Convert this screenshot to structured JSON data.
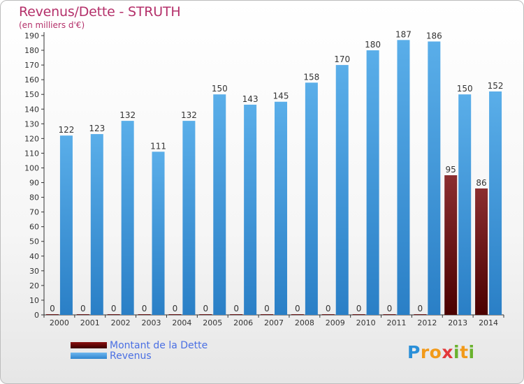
{
  "chart_data": {
    "type": "bar",
    "title": "Revenus/Dette - STRUTH",
    "subtitle": "(en milliers d'€)",
    "categories": [
      "2000",
      "2001",
      "2002",
      "2003",
      "2004",
      "2005",
      "2006",
      "2007",
      "2008",
      "2009",
      "2010",
      "2011",
      "2012",
      "2013",
      "2014"
    ],
    "series": [
      {
        "name": "Montant de la Dette",
        "values": [
          0,
          0,
          0,
          0,
          0,
          0,
          0,
          0,
          0,
          0,
          0,
          0,
          0,
          95,
          86
        ],
        "color_top": "#8b2e30",
        "color_bottom": "#4a0000"
      },
      {
        "name": "Revenus",
        "values": [
          122,
          123,
          132,
          111,
          132,
          150,
          143,
          145,
          158,
          170,
          180,
          187,
          186,
          150,
          152
        ],
        "color_top": "#5aaee9",
        "color_bottom": "#2a7fc6"
      }
    ],
    "ylim": [
      0,
      190
    ],
    "ytick_step": 10,
    "xlabel": "",
    "ylabel": "",
    "grid": false,
    "legend_position": "bottom-left"
  },
  "branding": {
    "logo_letters": [
      "P",
      "r",
      "o",
      "x",
      "i",
      "t",
      "i"
    ],
    "logo_colors": [
      "#2a8fd8",
      "#f29a1a",
      "#f29a1a",
      "#e3383a",
      "#6ab22e",
      "#f29a1a",
      "#6ab22e"
    ]
  }
}
